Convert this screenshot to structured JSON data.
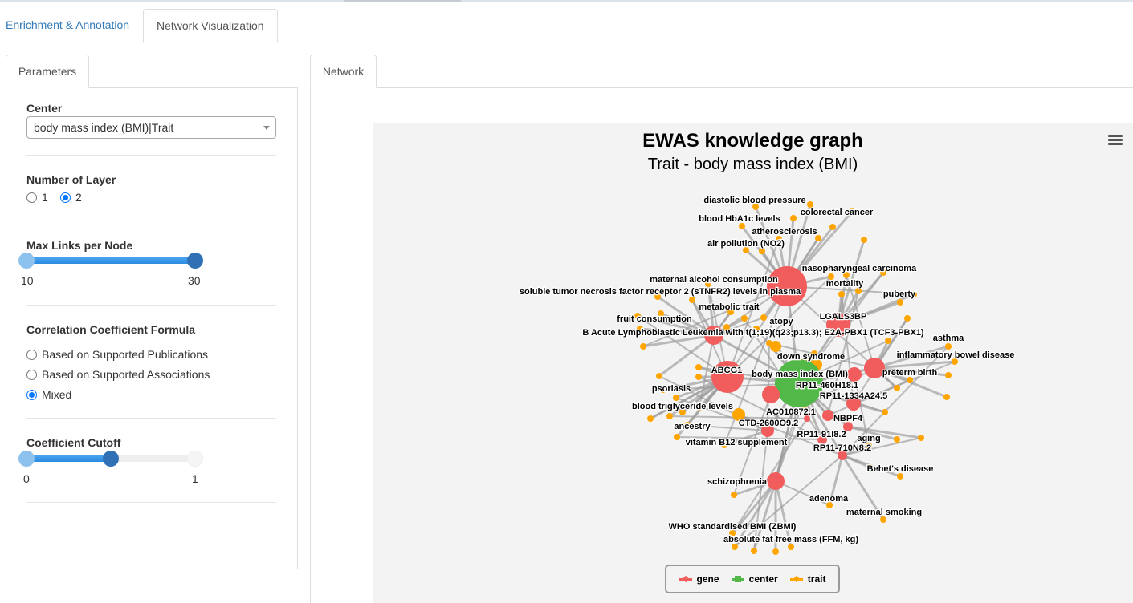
{
  "tabs": [
    {
      "label": "Enrichment & Annotation",
      "active": false
    },
    {
      "label": "Network Visualization",
      "active": true
    }
  ],
  "params": {
    "tab": "Parameters",
    "center": {
      "label": "Center",
      "value": "body mass index (BMI)|Trait"
    },
    "layers": {
      "label": "Number of Layer",
      "options": [
        "1",
        "2"
      ],
      "selected": "2"
    },
    "max_links": {
      "label": "Max Links per Node",
      "min": "10",
      "max": "30",
      "low": 10,
      "high": 30
    },
    "formula": {
      "label": "Correlation Coefficient Formula",
      "options": [
        "Based on Supported Publications",
        "Based on Supported Associations",
        "Mixed"
      ],
      "selected": "Mixed"
    },
    "cutoff": {
      "label": "Coefficient Cutoff",
      "min": "0",
      "max": "1",
      "value": 0.5
    }
  },
  "network": {
    "tab": "Network",
    "title": "EWAS knowledge graph",
    "subtitle": "Trait - body mass index (BMI)",
    "colors": {
      "gene": "#f15c5c",
      "center": "#52b847",
      "trait": "#ffa500",
      "edge": "#999999"
    },
    "legend": [
      {
        "label": "gene",
        "type": "gene"
      },
      {
        "label": "center",
        "type": "center"
      },
      {
        "label": "trait",
        "type": "trait"
      }
    ],
    "labels": [
      "diastolic blood pressure",
      "blood HbA1c levels",
      "colorectal cancer",
      "atherosclerosis",
      "air pollution (NO2)",
      "nasopharyngeal carcinoma",
      "maternal alcohol consumption",
      "mortality",
      "soluble tumor necrosis factor receptor 2 (sTNFR2) levels in plasma",
      "puberty",
      "metabolic trait",
      "LGALS3BP",
      "fruit consumption",
      "atopy",
      "B Acute Lymphoblastic Leukemia with t(1;19)(q23;p13.3); E2A-PBX1 (TCF3-PBX1)",
      "asthma",
      "down syndrome",
      "inflammatory bowel disease",
      "ABCG1",
      "body mass index (BMI)",
      "preterm birth",
      "RP11-460H18.1",
      "RP11-1334A24.5",
      "psoriasis",
      "blood triglyceride levels",
      "AC010872.1",
      "NBPF4",
      "CTD-2600O9.2",
      "ancestry",
      "RP11-91I8.2",
      "aging",
      "vitamin B12 supplement",
      "RP11-710N8.2",
      "Behet's disease",
      "schizophrenia",
      "adenoma",
      "maternal smoking",
      "WHO standardised BMI (ZBMI)",
      "absolute fat free mass (FFM, kg)"
    ]
  }
}
